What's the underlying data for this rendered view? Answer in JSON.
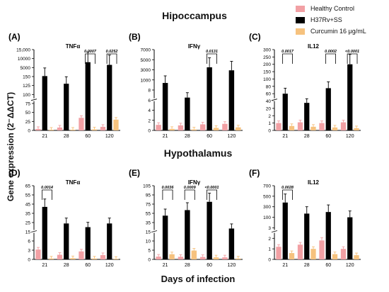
{
  "figure": {
    "title_top": "Hipoccampus",
    "title_bottom": "Hypothalamus",
    "ylabel": "Gene expression (2⁻ΔΔCT)",
    "xlabel": "Days of infection",
    "colors": {
      "healthy": "#f2a0a4",
      "h37": "#000000",
      "curcumin": "#f6c27e"
    }
  },
  "legend": [
    {
      "label": "Healthy Control",
      "color": "#f2a0a4"
    },
    {
      "label": "H37Rv+SS",
      "color": "#000000"
    },
    {
      "label": "Curcumin 16 μg/mL",
      "color": "#f6c27e"
    }
  ],
  "chart_data": [
    {
      "id": "A",
      "panel_label": "(A)",
      "title": "TNFα",
      "type": "bar",
      "region": "Hipoccampus",
      "categories": [
        "21",
        "28",
        "60",
        "120"
      ],
      "yticks": [
        "0",
        "25",
        "50",
        "75",
        "100",
        "125",
        "150",
        "5000",
        "10000",
        "15,000"
      ],
      "series": [
        {
          "name": "Healthy Control",
          "values": [
            4,
            8,
            35,
            10
          ]
        },
        {
          "name": "H37Rv+SS",
          "values": [
            400,
            130,
            8000,
            6500
          ]
        },
        {
          "name": "Curcumin 16 μg/mL",
          "values": [
            2,
            2,
            3,
            30
          ]
        }
      ],
      "significance": [
        {
          "category": "60",
          "label": "0.0007"
        },
        {
          "category": "120",
          "label": "0.0252"
        }
      ]
    },
    {
      "id": "B",
      "panel_label": "(B)",
      "title": "IFNγ",
      "type": "bar",
      "region": "Hipoccampus",
      "categories": [
        "21",
        "28",
        "60",
        "120"
      ],
      "yticks": [
        "0",
        "2",
        "4",
        "6",
        "8",
        "1000",
        "3000",
        "5000",
        "7000"
      ],
      "series": [
        {
          "name": "Healthy Control",
          "values": [
            1.1,
            1.0,
            1.2,
            1.3
          ]
        },
        {
          "name": "H37Rv+SS",
          "values": [
            700,
            6.5,
            3500,
            2900
          ]
        },
        {
          "name": "Curcumin 16 μg/mL",
          "values": [
            0.3,
            0.2,
            0.5,
            0.6
          ]
        }
      ],
      "significance": [
        {
          "category": "60",
          "label": "0.0131"
        }
      ]
    },
    {
      "id": "C",
      "panel_label": "(C)",
      "title": "IL12",
      "type": "bar",
      "region": "Hipoccampus",
      "categories": [
        "21",
        "28",
        "60",
        "120"
      ],
      "yticks": [
        "0",
        "1",
        "2",
        "20",
        "40",
        "60",
        "80",
        "100",
        "150",
        "200",
        "250",
        "300"
      ],
      "series": [
        {
          "name": "Healthy Control",
          "values": [
            1.0,
            1.1,
            1.0,
            1.1
          ]
        },
        {
          "name": "H37Rv+SS",
          "values": [
            60,
            35,
            75,
            200
          ]
        },
        {
          "name": "Curcumin 16 μg/mL",
          "values": [
            0.6,
            0.5,
            0.4,
            0.3
          ]
        }
      ],
      "significance": [
        {
          "category": "21",
          "label": "0.0017"
        },
        {
          "category": "60",
          "label": "0.0002"
        },
        {
          "category": "120",
          "label": "<0.0001"
        }
      ]
    },
    {
      "id": "D",
      "panel_label": "(D)",
      "title": "TNFα",
      "type": "bar",
      "region": "Hypothalamus",
      "categories": [
        "21",
        "28",
        "60",
        "120"
      ],
      "yticks": [
        "0",
        "3",
        "6",
        "15",
        "25",
        "35",
        "45",
        "55",
        "65"
      ],
      "series": [
        {
          "name": "Healthy Control",
          "values": [
            3.2,
            1.5,
            2.6,
            1.4
          ]
        },
        {
          "name": "H37Rv+SS",
          "values": [
            42,
            24,
            20,
            24
          ]
        },
        {
          "name": "Curcumin 16 μg/mL",
          "values": [
            0.3,
            0.4,
            0.3,
            0.2
          ]
        }
      ],
      "significance": [
        {
          "category": "21",
          "label": "0.0014"
        }
      ]
    },
    {
      "id": "E",
      "panel_label": "(E)",
      "title": "IFNγ",
      "type": "bar",
      "region": "Hypothalamus",
      "categories": [
        "21",
        "28",
        "60",
        "120"
      ],
      "yticks": [
        "0",
        "5",
        "10",
        "15",
        "35",
        "55",
        "75",
        "95",
        "105"
      ],
      "series": [
        {
          "name": "Healthy Control",
          "values": [
            1.5,
            1.4,
            1.3,
            1.1
          ]
        },
        {
          "name": "H37Rv+SS",
          "values": [
            50,
            62,
            80,
            22
          ]
        },
        {
          "name": "Curcumin 16 μg/mL",
          "values": [
            2.8,
            4.8,
            1.1,
            0.5
          ]
        }
      ],
      "significance": [
        {
          "category": "21",
          "label": "0.0036"
        },
        {
          "category": "28",
          "label": "0.0009"
        },
        {
          "category": "60",
          "label": "<0.0001"
        }
      ]
    },
    {
      "id": "F",
      "panel_label": "(F)",
      "title": "IL12",
      "type": "bar",
      "region": "Hypothalamus",
      "categories": [
        "21",
        "28",
        "60",
        "120"
      ],
      "yticks": [
        "0",
        "1",
        "2",
        "3",
        "100",
        "300",
        "500",
        "700"
      ],
      "series": [
        {
          "name": "Healthy Control",
          "values": [
            1.2,
            1.4,
            1.8,
            1.0
          ]
        },
        {
          "name": "H37Rv+SS",
          "values": [
            380,
            170,
            200,
            100
          ]
        },
        {
          "name": "Curcumin 16 μg/mL",
          "values": [
            0.6,
            1.0,
            0.5,
            0.4
          ]
        }
      ],
      "significance": [
        {
          "category": "21",
          "label": "0.0028"
        }
      ]
    }
  ]
}
